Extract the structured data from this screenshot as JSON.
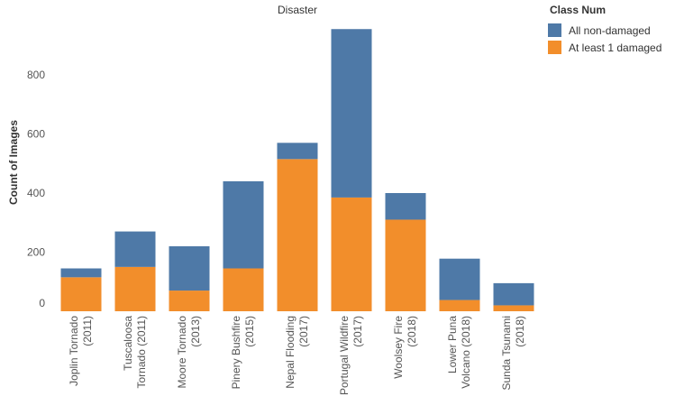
{
  "chart_data": {
    "type": "bar",
    "stacked": true,
    "title": "Disaster",
    "xlabel": "",
    "ylabel": "Count of Images",
    "ylim": [
      0,
      960
    ],
    "yticks": [
      0,
      200,
      400,
      600,
      800
    ],
    "categories": [
      [
        "Joplin Tornado",
        "(2011)"
      ],
      [
        "Tuscaloosa",
        "Tornado (2011)"
      ],
      [
        "Moore Tornado",
        "(2013)"
      ],
      [
        "Pinery Bushfire",
        "(2015)"
      ],
      [
        "Nepal Flooding",
        "(2017)"
      ],
      [
        "Portugal Wildfire",
        "(2017)"
      ],
      [
        "Woolsey Fire",
        "(2018)"
      ],
      [
        "Lower Puna",
        "Volcano (2018)"
      ],
      [
        "Sunda Tsunami",
        "(2018)"
      ]
    ],
    "series": [
      {
        "name": "At least 1 damaged",
        "color": "#F28E2B",
        "values": [
          115,
          150,
          70,
          145,
          515,
          385,
          310,
          38,
          20
        ]
      },
      {
        "name": "All non-damaged",
        "color": "#4E79A7",
        "values": [
          30,
          120,
          150,
          295,
          55,
          570,
          90,
          140,
          75
        ]
      }
    ],
    "legend": {
      "title": "Class Num",
      "position": "top-right",
      "items": [
        {
          "label": "All non-damaged",
          "color": "#4E79A7"
        },
        {
          "label": "At least 1 damaged",
          "color": "#F28E2B"
        }
      ]
    }
  }
}
